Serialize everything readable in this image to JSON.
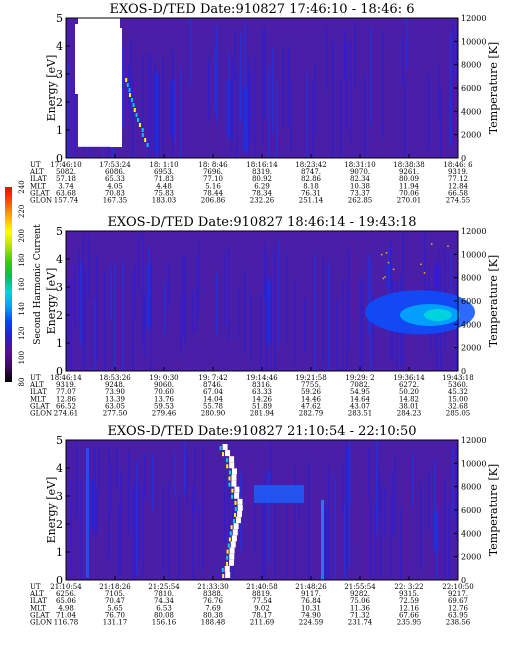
{
  "chart_data": [
    {
      "type": "heatmap",
      "title": "EXOS-D/TED   Date:910827   17:46:10 - 18:46: 6",
      "ylabel": "Energy [eV]",
      "y2label": "Temperature [K]",
      "ylim": [
        0,
        5
      ],
      "yticks": [
        "0",
        "1",
        "2",
        "3",
        "4",
        "5"
      ],
      "y2lim": [
        0,
        12000
      ],
      "y2ticks": [
        "0",
        "2000",
        "4000",
        "6000",
        "8000",
        "10000",
        "12000"
      ],
      "xtick_rows": [
        {
          "name": "UT",
          "values": [
            "17:46:10",
            "17:53:24",
            "18: 1:10",
            "18: 8:46",
            "18:16:14",
            "18:23:42",
            "18:31:10",
            "18:38:38",
            "18:46: 6"
          ]
        },
        {
          "name": "ALT",
          "values": [
            "5082.",
            "6086.",
            "6953.",
            "7696.",
            "8319.",
            "8747.",
            "9070.",
            "9261.",
            "9319."
          ]
        },
        {
          "name": "ILAT",
          "values": [
            "57.18",
            "65.33",
            "71.83",
            "77.10",
            "80.92",
            "82.86",
            "82.34",
            "80.09",
            "77.12"
          ]
        },
        {
          "name": "MLT",
          "values": [
            "3.74",
            "4.05",
            "4.48",
            "5.16",
            "6.29",
            "8.18",
            "10.38",
            "11.94",
            "12.84"
          ]
        },
        {
          "name": "GLAT",
          "values": [
            "63.68",
            "70.83",
            "75.83",
            "78.44",
            "78.34",
            "76.31",
            "73.37",
            "70.06",
            "66.58"
          ]
        },
        {
          "name": "GLON",
          "values": [
            "157.74",
            "167.35",
            "183.03",
            "206.86",
            "232.26",
            "251.14",
            "262.85",
            "270.01",
            "274.55"
          ]
        }
      ]
    },
    {
      "type": "heatmap",
      "title": "EXOS-D/TED   Date:910827   18:46:14 - 19:43:18",
      "ylabel": "Energy [eV]",
      "y2label": "Temperature [K]",
      "ylim": [
        0,
        5
      ],
      "yticks": [
        "0",
        "1",
        "2",
        "3",
        "4",
        "5"
      ],
      "y2lim": [
        0,
        12000
      ],
      "y2ticks": [
        "0",
        "2000",
        "4000",
        "6000",
        "8000",
        "10000",
        "12000"
      ],
      "xtick_rows": [
        {
          "name": "UT",
          "values": [
            "18:46:14",
            "18:53:26",
            "19: 0:30",
            "19: 7:42",
            "19:14:46",
            "19:21:58",
            "19:29: 2",
            "19:36:14",
            "19:43:18"
          ]
        },
        {
          "name": "ALT",
          "values": [
            "9319.",
            "9248.",
            "9060.",
            "8746.",
            "8316.",
            "7755.",
            "7082.",
            "6272.",
            "5360."
          ]
        },
        {
          "name": "ILAT",
          "values": [
            "77.07",
            "73.90",
            "70.60",
            "67.04",
            "63.33",
            "59.26",
            "54.95",
            "50.20",
            "45.32"
          ]
        },
        {
          "name": "MLT",
          "values": [
            "12.86",
            "13.39",
            "13.76",
            "14.04",
            "14.26",
            "14.46",
            "14.64",
            "14.82",
            "15.00"
          ]
        },
        {
          "name": "GLAT",
          "values": [
            "66.52",
            "63.05",
            "59.53",
            "55.78",
            "51.89",
            "47.62",
            "43.07",
            "38.01",
            "32.68"
          ]
        },
        {
          "name": "GLON",
          "values": [
            "274.61",
            "277.50",
            "279.46",
            "280.90",
            "281.94",
            "282.79",
            "283.51",
            "284.23",
            "285.05"
          ]
        }
      ]
    },
    {
      "type": "heatmap",
      "title": "EXOS-D/TED   Date:910827   21:10:54 - 22:10:50",
      "ylabel": "Energy [eV]",
      "y2label": "Temperature [K]",
      "ylim": [
        0,
        5
      ],
      "yticks": [
        "0",
        "1",
        "2",
        "3",
        "4",
        "5"
      ],
      "y2lim": [
        0,
        12000
      ],
      "y2ticks": [
        "0",
        "2000",
        "4000",
        "6000",
        "8000",
        "10000",
        "12000"
      ],
      "xtick_rows": [
        {
          "name": "UT",
          "values": [
            "21:10:54",
            "21:18:26",
            "21:25:54",
            "21:33:30",
            "21:40:58",
            "21:48:26",
            "21:55:54",
            "22: 3:22",
            "22:10:50"
          ]
        },
        {
          "name": "ALT",
          "values": [
            "6256.",
            "7105.",
            "7810.",
            "8388.",
            "8819.",
            "9117.",
            "9282.",
            "9315.",
            "9217."
          ]
        },
        {
          "name": "ILAT",
          "values": [
            "65.06",
            "70.47",
            "74.34",
            "76.76",
            "77.54",
            "76.84",
            "75.06",
            "72.59",
            "69.67"
          ]
        },
        {
          "name": "MLT",
          "values": [
            "4.98",
            "5.65",
            "6.53",
            "7.69",
            "9.02",
            "10.31",
            "11.36",
            "12.16",
            "12.76"
          ]
        },
        {
          "name": "GLAT",
          "values": [
            "71.04",
            "76.70",
            "80.08",
            "80.38",
            "78.17",
            "74.90",
            "71.32",
            "67.66",
            "63.95"
          ]
        },
        {
          "name": "GLON",
          "values": [
            "116.78",
            "131.17",
            "156.16",
            "188.48",
            "211.69",
            "224.59",
            "231.74",
            "235.95",
            "238.56"
          ]
        }
      ]
    }
  ],
  "colorbar": {
    "label": "Second Harmonic Current",
    "range": [
      80,
      240
    ],
    "ticks": [
      "80",
      "100",
      "120",
      "140",
      "160",
      "180",
      "200",
      "220",
      "240"
    ],
    "colors": [
      "#000000",
      "#3a0a5a",
      "#5a1090",
      "#2a1fd0",
      "#0a40ff",
      "#00a0ff",
      "#00d8d8",
      "#00c060",
      "#30d000",
      "#b0e000",
      "#ffff00",
      "#ffb000",
      "#ff5000",
      "#ff0000"
    ]
  }
}
